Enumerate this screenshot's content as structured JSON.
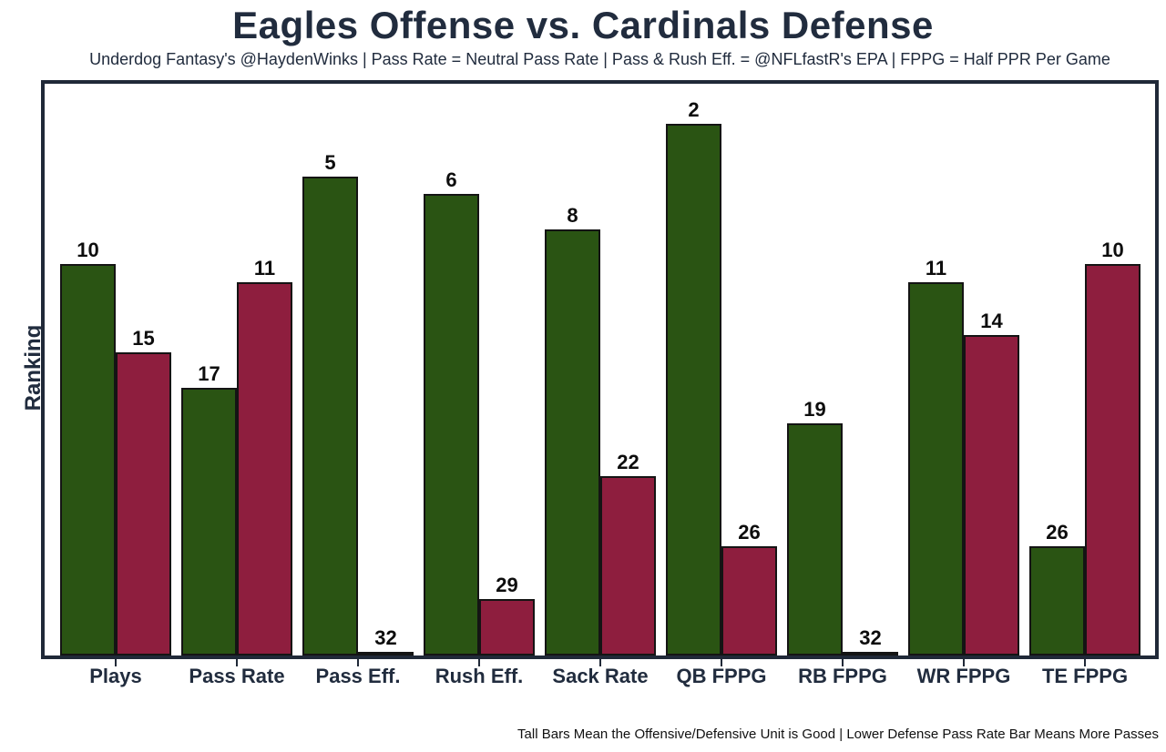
{
  "chart_data": {
    "type": "bar",
    "title": "Eagles Offense vs. Cardinals Defense",
    "subtitle": "Underdog Fantasy's @HaydenWinks | Pass Rate = Neutral Pass Rate | Pass & Rush Eff. = @NFLfastR's EPA | FPPG = Half PPR Per Game",
    "ylabel": "Ranking",
    "footnote": "Tall Bars Mean the Offensive/Defensive Unit is Good | Lower Defense Pass Rate Bar Means More Passes",
    "categories": [
      "Plays",
      "Pass Rate",
      "Pass Eff.",
      "Rush Eff.",
      "Sack Rate",
      "QB FPPG",
      "RB FPPG",
      "WR FPPG",
      "TE FPPG"
    ],
    "series": [
      {
        "name": "Eagles Offense",
        "role": "offense",
        "color": "#2a5413",
        "values": [
          10,
          17,
          5,
          6,
          8,
          2,
          19,
          11,
          26
        ]
      },
      {
        "name": "Cardinals Defense",
        "role": "defense",
        "color": "#8e1e3e",
        "values": [
          15,
          11,
          32,
          29,
          22,
          26,
          32,
          14,
          10
        ]
      }
    ],
    "value_meaning": "NFL ranking, 1 = best of 32; taller bar = better rank (height drawn as 32 minus rank)",
    "ylim": [
      0,
      33
    ],
    "grid": false,
    "legend": false,
    "colors": {
      "offense_bar": "#2a5413",
      "defense_bar": "#8e1e3e",
      "bar_outline": "#141414",
      "frame": "#202938",
      "text": "#212c3e",
      "value_label": "#0d0d0d"
    }
  }
}
